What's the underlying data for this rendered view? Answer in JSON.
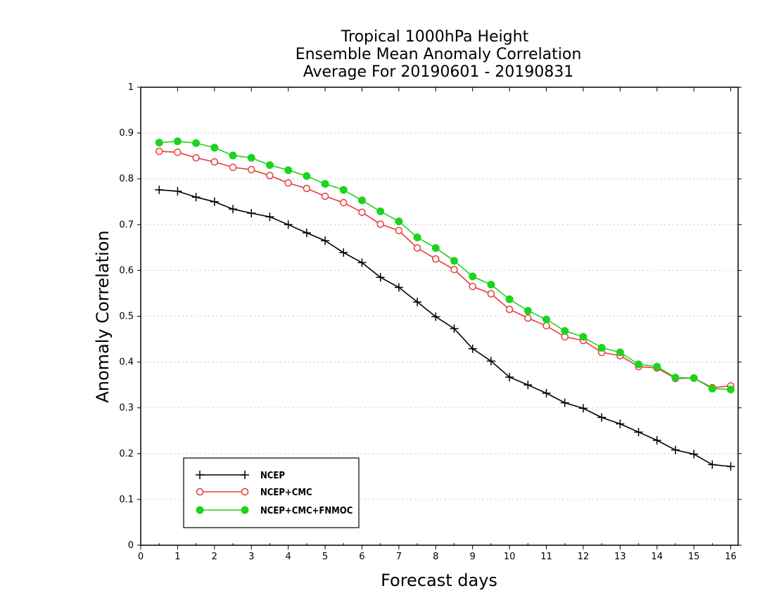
{
  "chart_data": {
    "type": "line",
    "title_lines": [
      "Tropical 1000hPa Height",
      "Ensemble Mean Anomaly Correlation",
      "Average For 20190601 - 20190831"
    ],
    "xlabel": "Forecast days",
    "ylabel": "Anomaly Correlation",
    "xlim": [
      0,
      16.2
    ],
    "ylim": [
      0,
      1
    ],
    "xticks": [
      0,
      1,
      2,
      3,
      4,
      5,
      6,
      7,
      8,
      9,
      10,
      11,
      12,
      13,
      14,
      15,
      16
    ],
    "yticks": [
      0,
      0.1,
      0.2,
      0.3,
      0.4,
      0.5,
      0.6,
      0.7,
      0.8,
      0.9,
      1
    ],
    "grid": "horizontal dotted",
    "legend_position": "bottom-left",
    "x": [
      0.5,
      1,
      1.5,
      2,
      2.5,
      3,
      3.5,
      4,
      4.5,
      5,
      5.5,
      6,
      6.5,
      7,
      7.5,
      8,
      8.5,
      9,
      9.5,
      10,
      10.5,
      11,
      11.5,
      12,
      12.5,
      13,
      13.5,
      14,
      14.5,
      15,
      15.5,
      16
    ],
    "series": [
      {
        "name": "NCEP",
        "color": "#000000",
        "marker": "plus",
        "values": [
          0.776,
          0.773,
          0.76,
          0.75,
          0.734,
          0.725,
          0.717,
          0.7,
          0.682,
          0.665,
          0.639,
          0.617,
          0.585,
          0.563,
          0.531,
          0.499,
          0.473,
          0.429,
          0.402,
          0.367,
          0.35,
          0.332,
          0.311,
          0.299,
          0.279,
          0.265,
          0.247,
          0.229,
          0.208,
          0.199,
          0.176,
          0.172
        ]
      },
      {
        "name": "NCEP+CMC",
        "color": "#e83a3a",
        "marker": "open-circle",
        "values": [
          0.86,
          0.858,
          0.846,
          0.837,
          0.825,
          0.82,
          0.807,
          0.791,
          0.779,
          0.762,
          0.748,
          0.727,
          0.701,
          0.687,
          0.649,
          0.625,
          0.602,
          0.565,
          0.549,
          0.515,
          0.496,
          0.479,
          0.455,
          0.447,
          0.421,
          0.414,
          0.39,
          0.387,
          0.364,
          0.365,
          0.344,
          0.348
        ]
      },
      {
        "name": "NCEP+CMC+FNMOC",
        "color": "#1ed31e",
        "marker": "filled-circle",
        "values": [
          0.879,
          0.882,
          0.878,
          0.868,
          0.851,
          0.846,
          0.83,
          0.819,
          0.806,
          0.789,
          0.776,
          0.753,
          0.729,
          0.707,
          0.672,
          0.649,
          0.621,
          0.587,
          0.569,
          0.537,
          0.512,
          0.493,
          0.468,
          0.455,
          0.431,
          0.421,
          0.395,
          0.39,
          0.366,
          0.365,
          0.342,
          0.34
        ]
      }
    ]
  }
}
